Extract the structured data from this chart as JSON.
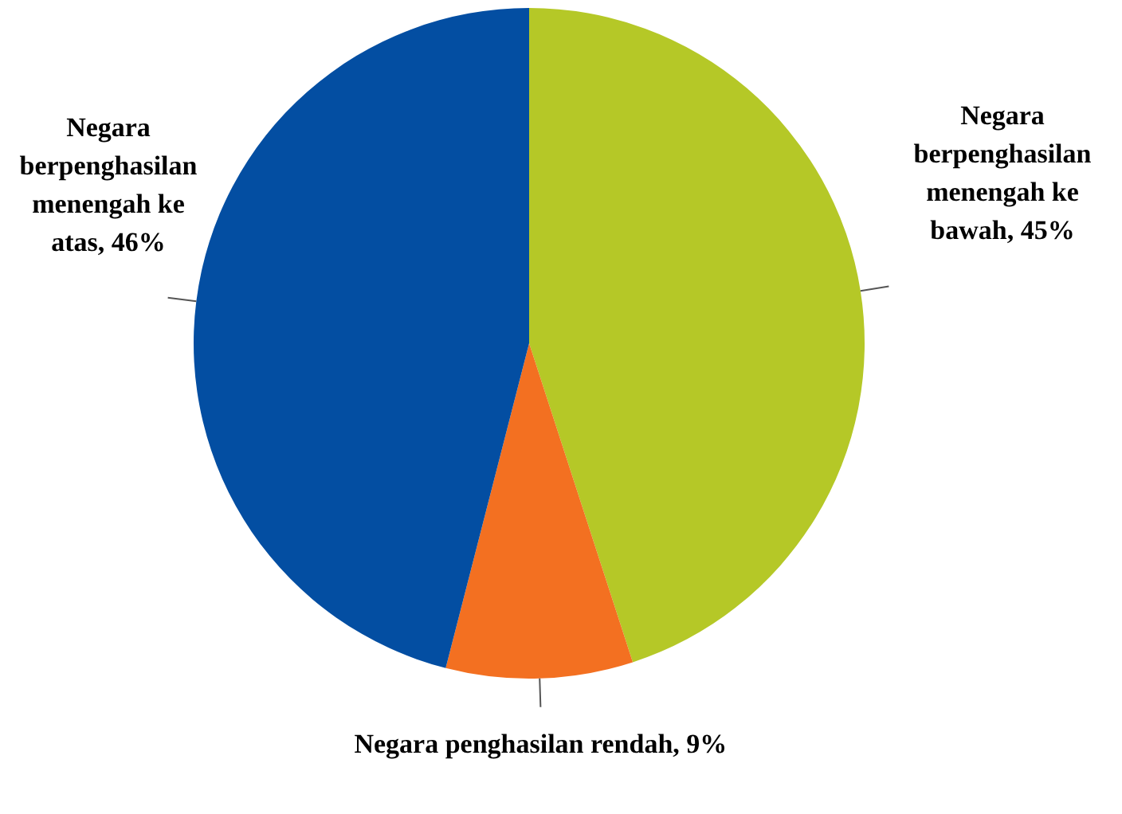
{
  "chart_data": {
    "type": "pie",
    "categories": [
      "Negara berpenghasilan menengah ke bawah",
      "Negara penghasilan rendah",
      "Negara berpenghasilan menengah ke atas"
    ],
    "values": [
      45,
      9,
      46
    ],
    "value_labels": [
      "45%",
      "9%",
      "46%"
    ],
    "colors": [
      "#b5c827",
      "#f37021",
      "#034ea2"
    ],
    "legend": false
  }
}
